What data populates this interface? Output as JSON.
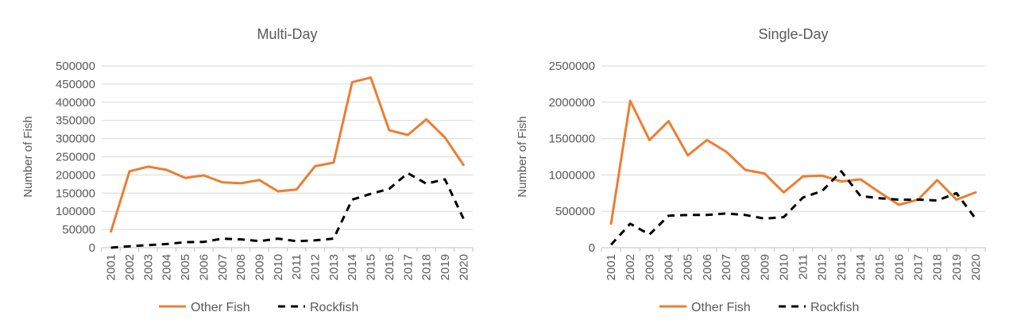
{
  "chart_data": [
    {
      "type": "line",
      "title": "Multi-Day",
      "xlabel": "",
      "ylabel": "Number of Fish",
      "ylim": [
        0,
        500000
      ],
      "yticks": [
        0,
        50000,
        100000,
        150000,
        200000,
        250000,
        300000,
        350000,
        400000,
        450000,
        500000
      ],
      "grid": true,
      "legend": "bottom",
      "categories": [
        "2001",
        "2002",
        "2003",
        "2004",
        "2005",
        "2006",
        "2007",
        "2008",
        "2009",
        "2010",
        "2011",
        "2012",
        "2013",
        "2014",
        "2015",
        "2016",
        "2017",
        "2018",
        "2019",
        "2020"
      ],
      "series": [
        {
          "name": "Other Fish",
          "color": "#ED7D31",
          "dash": "solid",
          "values": [
            45000,
            210000,
            223000,
            214000,
            192000,
            199000,
            180000,
            177000,
            186000,
            155000,
            160000,
            224000,
            234000,
            455000,
            468000,
            323000,
            310000,
            353000,
            303000,
            228000
          ]
        },
        {
          "name": "Rockfish",
          "color": "#000000",
          "dash": "dashed",
          "values": [
            0,
            4000,
            7000,
            10000,
            15000,
            16000,
            25000,
            23000,
            18000,
            25000,
            18000,
            20000,
            25000,
            132000,
            148000,
            162000,
            205000,
            176000,
            188000,
            80000
          ]
        }
      ]
    },
    {
      "type": "line",
      "title": "Single-Day",
      "xlabel": "",
      "ylabel": "Number of Fish",
      "ylim": [
        0,
        2500000
      ],
      "yticks": [
        0,
        500000,
        1000000,
        1500000,
        2000000,
        2500000
      ],
      "grid": true,
      "legend": "bottom",
      "categories": [
        "2001",
        "2002",
        "2003",
        "2004",
        "2005",
        "2006",
        "2007",
        "2008",
        "2009",
        "2010",
        "2011",
        "2012",
        "2013",
        "2014",
        "2015",
        "2016",
        "2017",
        "2018",
        "2019",
        "2020"
      ],
      "series": [
        {
          "name": "Other Fish",
          "color": "#ED7D31",
          "dash": "solid",
          "values": [
            330000,
            2020000,
            1480000,
            1740000,
            1270000,
            1480000,
            1320000,
            1070000,
            1020000,
            760000,
            980000,
            990000,
            910000,
            940000,
            760000,
            590000,
            660000,
            930000,
            660000,
            760000
          ]
        },
        {
          "name": "Rockfish",
          "color": "#000000",
          "dash": "dashed",
          "values": [
            40000,
            330000,
            180000,
            440000,
            450000,
            450000,
            470000,
            450000,
            400000,
            420000,
            690000,
            780000,
            1050000,
            710000,
            680000,
            660000,
            660000,
            650000,
            750000,
            400000
          ]
        }
      ]
    }
  ]
}
